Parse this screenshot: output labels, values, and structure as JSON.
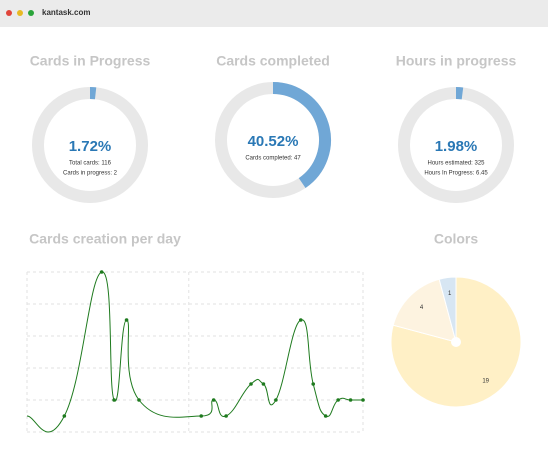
{
  "browser": {
    "url": "kantask.com"
  },
  "donuts": [
    {
      "title": "Cards in Progress",
      "value": 1.72,
      "value_label": "1.72%",
      "details": [
        "Total cards: 116",
        "Cards in progress: 2"
      ]
    },
    {
      "title": "Cards completed",
      "value": 40.52,
      "value_label": "40.52%",
      "details": [
        "Cards completed: 47"
      ]
    },
    {
      "title": "Hours in progress",
      "value": 1.98,
      "value_label": "1.98%",
      "details": [
        "Hours estimated: 325",
        "Hours In Progress: 6.45"
      ]
    }
  ],
  "line_chart": {
    "type": "line",
    "title": "Cards creation per day",
    "color": "#1e7a1e",
    "x": [
      0,
      3,
      6,
      7,
      8,
      9,
      14,
      15,
      16,
      18,
      19,
      20,
      22,
      23,
      24,
      25,
      26,
      27
    ],
    "values": [
      1,
      1,
      10,
      2,
      7,
      2,
      1,
      2,
      1,
      3,
      3,
      2,
      7,
      3,
      1,
      2,
      2,
      2
    ],
    "xlim": [
      0,
      27
    ],
    "ylim": [
      0,
      10
    ],
    "yticks": [
      0,
      2,
      4,
      6,
      8,
      10
    ],
    "xticks": [
      0,
      13,
      27
    ],
    "grid": true
  },
  "pie_chart": {
    "type": "pie",
    "title": "Colors",
    "categories": [
      null,
      null,
      null
    ],
    "values": [
      19,
      4,
      1
    ],
    "colors": [
      "#fff0c6",
      "#fdf3e0",
      "#d7e6f3"
    ]
  }
}
